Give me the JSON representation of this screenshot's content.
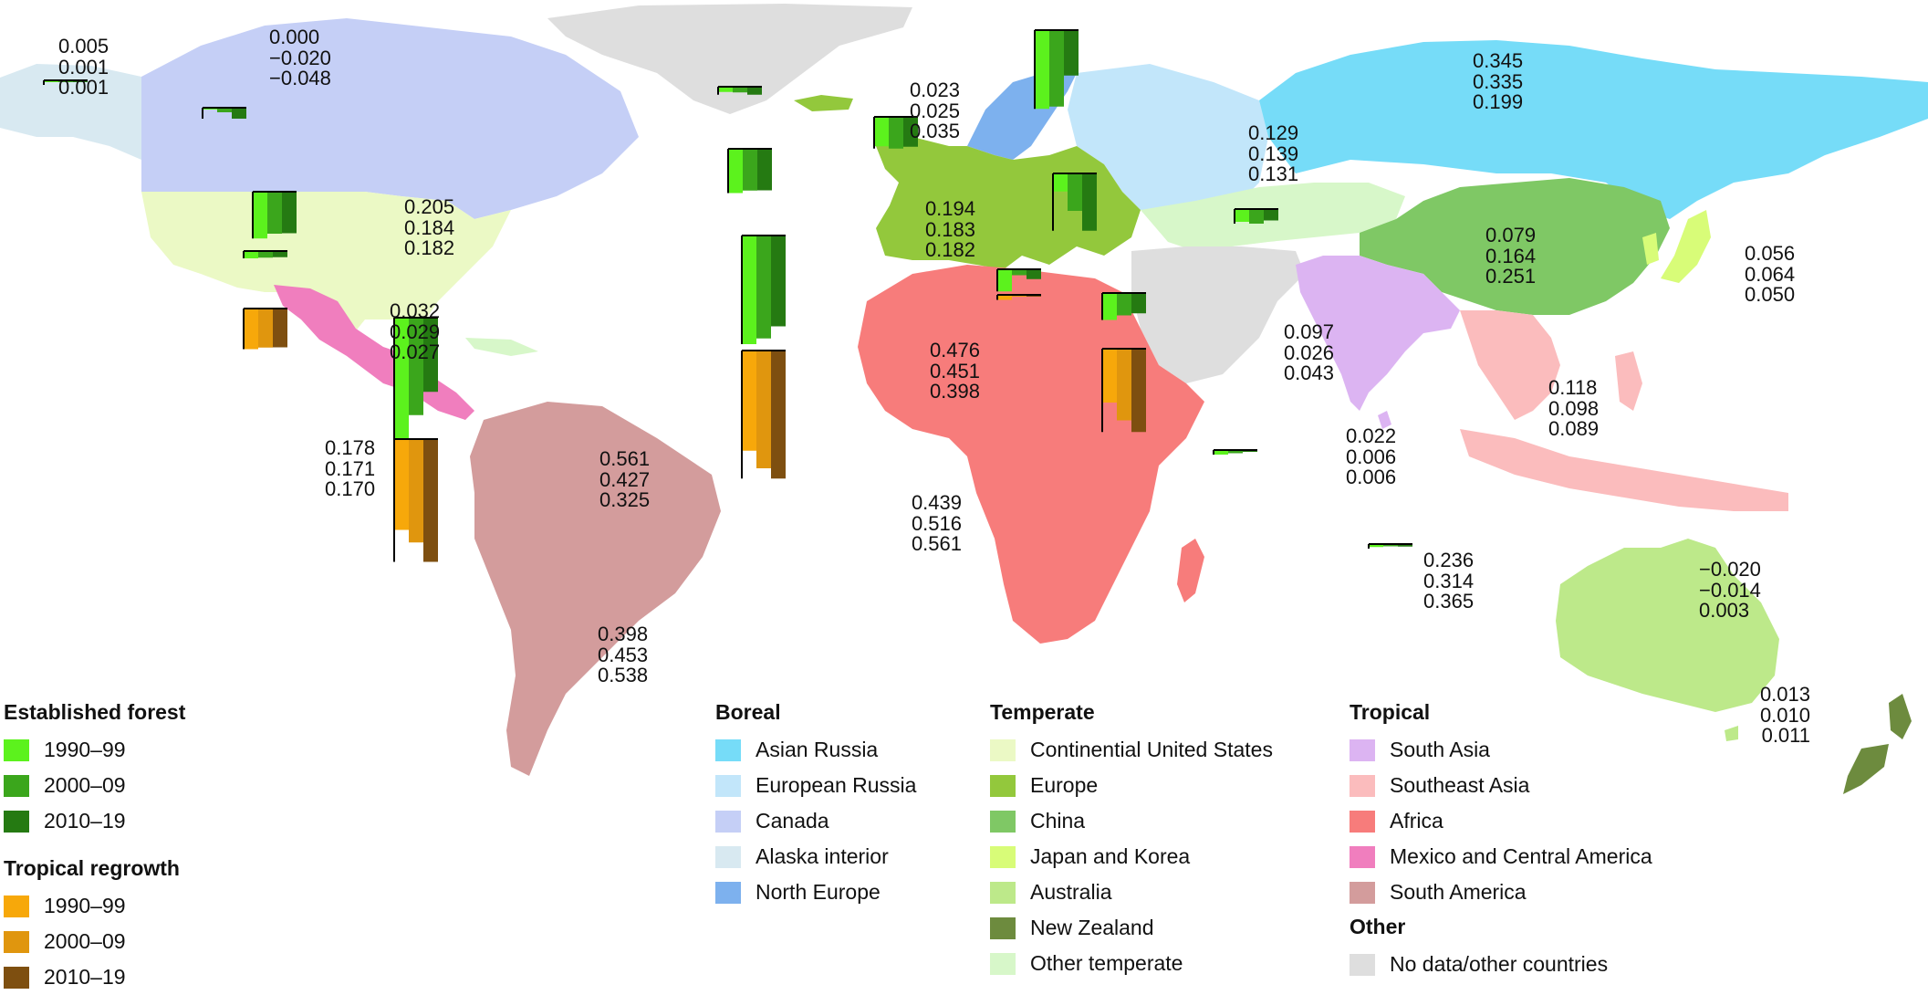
{
  "colors": {
    "asian_russia": "#76dcf8",
    "european_russia": "#c2e6fa",
    "canada": "#c5cff6",
    "alaska_interior": "#d8e9f1",
    "north_europe": "#7db1ee",
    "continental_us": "#ebf9c5",
    "europe": "#93c83c",
    "china": "#7fc865",
    "japan_korea": "#d8fc78",
    "australia": "#bde98a",
    "new_zealand": "#6d8b3e",
    "other_temperate": "#d7f7c9",
    "south_asia": "#dcb4f2",
    "southeast_asia": "#fbbcbd",
    "africa": "#f77c7b",
    "mexico_central_america": "#f07ebe",
    "south_america": "#d39c9c",
    "no_data": "#dedede",
    "established_1990": "#5cf21d",
    "established_2000": "#3ba61c",
    "established_2010": "#257a12",
    "regrowth_1990": "#f7a80a",
    "regrowth_2000": "#e0960e",
    "regrowth_2010": "#7e4f10"
  },
  "legend_left": {
    "established": {
      "title": "Established forest",
      "items": [
        {
          "label": "1990–99",
          "color": "#5cf21d"
        },
        {
          "label": "2000–09",
          "color": "#3ba61c"
        },
        {
          "label": "2010–19",
          "color": "#257a12"
        }
      ]
    },
    "regrowth": {
      "title": "Tropical regrowth",
      "items": [
        {
          "label": "1990–99",
          "color": "#f7a80a"
        },
        {
          "label": "2000–09",
          "color": "#e0960e"
        },
        {
          "label": "2010–19",
          "color": "#7e4f10"
        }
      ]
    }
  },
  "legend_regions": {
    "boreal": {
      "title": "Boreal",
      "items": [
        {
          "label": "Asian Russia",
          "color": "#76dcf8"
        },
        {
          "label": "European Russia",
          "color": "#c2e6fa"
        },
        {
          "label": "Canada",
          "color": "#c5cff6"
        },
        {
          "label": "Alaska interior",
          "color": "#d8e9f1"
        },
        {
          "label": "North Europe",
          "color": "#7db1ee"
        }
      ]
    },
    "temperate": {
      "title": "Temperate",
      "items": [
        {
          "label": "Continential United States",
          "color": "#ebf9c5"
        },
        {
          "label": "Europe",
          "color": "#93c83c"
        },
        {
          "label": "China",
          "color": "#7fc865"
        },
        {
          "label": "Japan and Korea",
          "color": "#d8fc78"
        },
        {
          "label": "Australia",
          "color": "#bde98a"
        },
        {
          "label": "New Zealand",
          "color": "#6d8b3e"
        },
        {
          "label": "Other temperate",
          "color": "#d7f7c9"
        }
      ]
    },
    "tropical": {
      "title": "Tropical",
      "items": [
        {
          "label": "South Asia",
          "color": "#dcb4f2"
        },
        {
          "label": "Southeast Asia",
          "color": "#fbbcbd"
        },
        {
          "label": "Africa",
          "color": "#f77c7b"
        },
        {
          "label": "Mexico and Central America",
          "color": "#f07ebe"
        },
        {
          "label": "South America",
          "color": "#d39c9c"
        }
      ]
    },
    "other": {
      "title": "Other",
      "items": [
        {
          "label": "No data/other countries",
          "color": "#dedede"
        }
      ]
    }
  },
  "bar_groups": [
    {
      "region": "Alaska interior",
      "kind": "established",
      "values": [
        "0.005",
        "0.001",
        "0.001"
      ]
    },
    {
      "region": "Canada",
      "kind": "established",
      "values": [
        "0.000",
        "−0.020",
        "−0.048"
      ]
    },
    {
      "region": "Continential United States",
      "kind": "established",
      "values": [
        "0.205",
        "0.184",
        "0.182"
      ]
    },
    {
      "region": "Mexico and Central America",
      "kind": "established",
      "values": [
        "0.032",
        "0.029",
        "0.027"
      ]
    },
    {
      "region": "Mexico and Central America",
      "kind": "regrowth",
      "values": [
        "0.178",
        "0.171",
        "0.170"
      ]
    },
    {
      "region": "South America",
      "kind": "established",
      "values": [
        "0.561",
        "0.427",
        "0.325"
      ]
    },
    {
      "region": "South America",
      "kind": "regrowth",
      "values": [
        "0.398",
        "0.453",
        "0.538"
      ]
    },
    {
      "region": "North Europe",
      "kind": "established",
      "values": [
        "0.023",
        "0.025",
        "0.035"
      ]
    },
    {
      "region": "Europe",
      "kind": "established",
      "values": [
        "0.194",
        "0.183",
        "0.182"
      ]
    },
    {
      "region": "European Russia",
      "kind": "established",
      "values": [
        "0.129",
        "0.139",
        "0.131"
      ]
    },
    {
      "region": "Asian Russia",
      "kind": "established",
      "values": [
        "0.345",
        "0.335",
        "0.199"
      ]
    },
    {
      "region": "Africa",
      "kind": "established",
      "values": [
        "0.476",
        "0.451",
        "0.398"
      ]
    },
    {
      "region": "Africa",
      "kind": "regrowth",
      "values": [
        "0.439",
        "0.516",
        "0.561"
      ]
    },
    {
      "region": "China",
      "kind": "established",
      "values": [
        "0.079",
        "0.164",
        "0.251"
      ]
    },
    {
      "region": "Japan and Korea",
      "kind": "established",
      "values": [
        "0.056",
        "0.064",
        "0.050"
      ]
    },
    {
      "region": "South Asia",
      "kind": "established",
      "values": [
        "0.097",
        "0.026",
        "0.043"
      ]
    },
    {
      "region": "South Asia",
      "kind": "regrowth",
      "values": [
        "0.022",
        "0.006",
        "0.006"
      ]
    },
    {
      "region": "Southeast Asia",
      "kind": "established",
      "values": [
        "0.118",
        "0.098",
        "0.089"
      ]
    },
    {
      "region": "Southeast Asia",
      "kind": "regrowth",
      "values": [
        "0.236",
        "0.314",
        "0.365"
      ]
    },
    {
      "region": "Australia",
      "kind": "established",
      "values": [
        "−0.020",
        "−0.014",
        "0.003"
      ]
    },
    {
      "region": "New Zealand",
      "kind": "established",
      "values": [
        "0.013",
        "0.010",
        "0.011"
      ]
    }
  ]
}
